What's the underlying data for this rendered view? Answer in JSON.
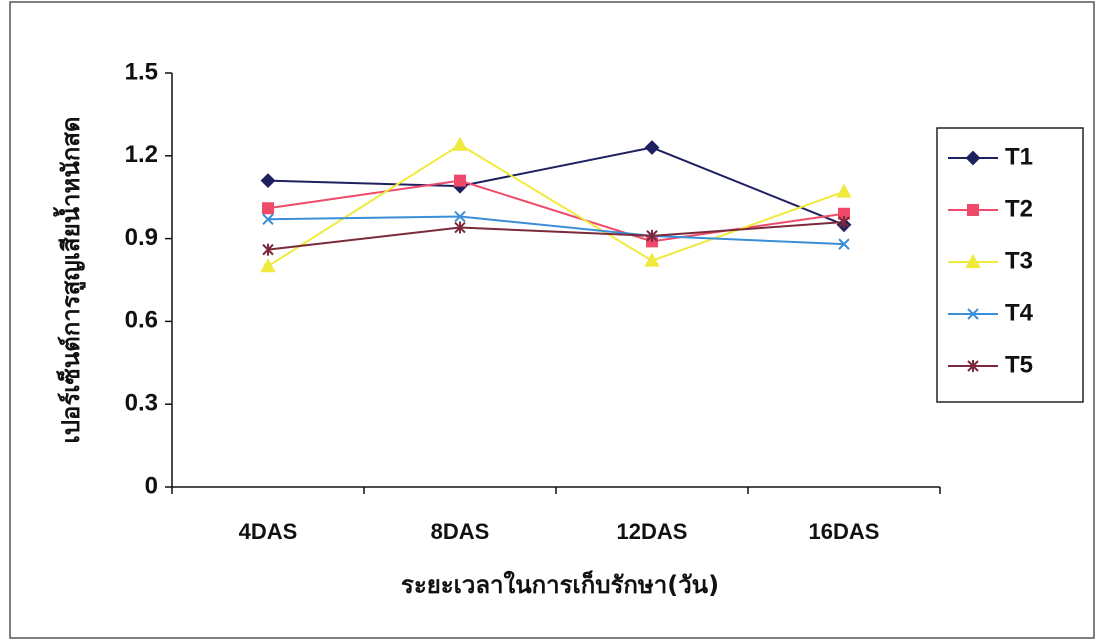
{
  "chart_data": {
    "type": "line",
    "y_label": "เปอร์เซ็นต์การสูญเสียน้ำหนักสด",
    "x_label": "ระยะเวลาในการเก็บรักษา(วัน)",
    "categories": [
      "4DAS",
      "8DAS",
      "12DAS",
      "16DAS"
    ],
    "series": [
      {
        "name": "T1",
        "color": "#1f2060",
        "marker": "diamond",
        "values": [
          1.11,
          1.09,
          1.23,
          0.95
        ]
      },
      {
        "name": "T2",
        "color": "#f04a6a",
        "marker": "square",
        "values": [
          1.01,
          1.11,
          0.89,
          0.99
        ]
      },
      {
        "name": "T3",
        "color": "#f0ea3c",
        "marker": "triangle",
        "values": [
          0.8,
          1.24,
          0.82,
          1.07
        ]
      },
      {
        "name": "T4",
        "color": "#3a8fd8",
        "marker": "x",
        "values": [
          0.97,
          0.98,
          0.91,
          0.88
        ]
      },
      {
        "name": "T5",
        "color": "#7a2a3a",
        "marker": "star",
        "values": [
          0.86,
          0.94,
          0.91,
          0.96
        ]
      }
    ],
    "ylim": [
      0,
      1.5
    ],
    "yticks": [
      0,
      0.3,
      0.6,
      0.9,
      1.2,
      1.5
    ],
    "legend": "right"
  }
}
